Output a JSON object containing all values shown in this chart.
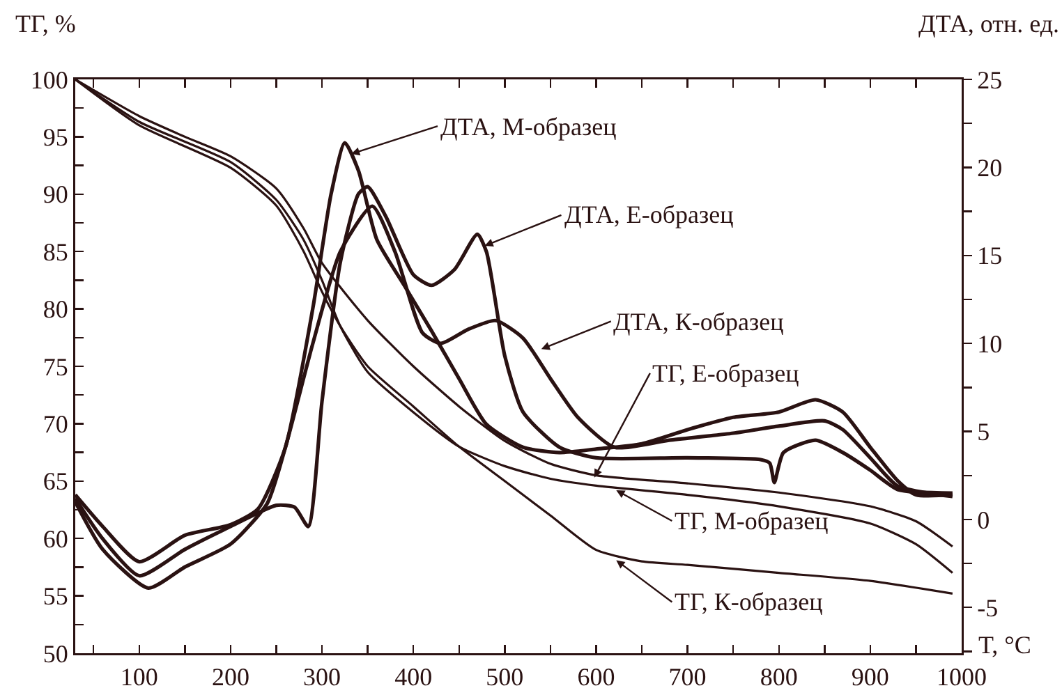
{
  "chart_data": {
    "type": "line",
    "xlabel": "T, °C",
    "ylabel": "ТГ, %",
    "y2label": "ДТА, отн. ед.",
    "xlim": [
      30,
      1000
    ],
    "ylim": [
      50,
      100
    ],
    "y2lim": [
      -7.6,
      25
    ],
    "xticks": [
      {
        "value": 50,
        "label": null
      },
      100,
      {
        "value": 150,
        "label": null
      },
      200,
      {
        "value": 250,
        "label": null
      },
      300,
      {
        "value": 350,
        "label": null
      },
      400,
      {
        "value": 450,
        "label": null
      },
      500,
      {
        "value": 550,
        "label": null
      },
      600,
      {
        "value": 650,
        "label": null
      },
      700,
      {
        "value": 750,
        "label": null
      },
      800,
      {
        "value": 850,
        "label": null
      },
      900,
      {
        "value": 950,
        "label": null
      },
      1000
    ],
    "yticks": [
      50,
      {
        "value": 52.5,
        "label": null
      },
      55,
      {
        "value": 57.5,
        "label": null
      },
      60,
      {
        "value": 62.5,
        "label": null
      },
      65,
      {
        "value": 67.5,
        "label": null
      },
      70,
      {
        "value": 72.5,
        "label": null
      },
      75,
      {
        "value": 77.5,
        "label": null
      },
      80,
      {
        "value": 82.5,
        "label": null
      },
      85,
      {
        "value": 87.5,
        "label": null
      },
      90,
      {
        "value": 92.5,
        "label": null
      },
      95,
      {
        "value": 97.5,
        "label": null
      },
      100
    ],
    "y2ticks": [
      {
        "value": -7.5,
        "label": null
      },
      -5,
      {
        "value": -2.5,
        "label": null
      },
      0,
      {
        "value": 2.5,
        "label": null
      },
      5,
      {
        "value": 7.5,
        "label": null
      },
      10,
      {
        "value": 12.5,
        "label": null
      },
      15,
      {
        "value": 17.5,
        "label": null
      },
      20,
      {
        "value": 22.5,
        "label": null
      },
      25
    ],
    "grid": false,
    "marker": "none",
    "line_style": "solid",
    "series": [
      {
        "color": "#2a1212",
        "x": [
          30,
          100,
          150,
          200,
          250,
          280,
          300,
          350,
          400,
          450,
          500,
          550,
          600,
          700,
          800,
          900,
          950,
          990
        ],
        "values": [
          100,
          96.8,
          95,
          93.3,
          90.5,
          87,
          84,
          79,
          75,
          71.5,
          68.5,
          66.5,
          65.5,
          64.8,
          64,
          62.8,
          61.5,
          59.3
        ]
      },
      {
        "color": "#2a1212",
        "x": [
          30,
          100,
          200,
          250,
          280,
          300,
          320,
          350,
          400,
          450,
          500,
          550,
          600,
          700,
          800,
          900,
          950,
          990
        ],
        "values": [
          100,
          96.3,
          92.8,
          89.5,
          86,
          82.5,
          78.5,
          74.5,
          71,
          68,
          66.3,
          65.2,
          64.6,
          63.8,
          62.8,
          61.3,
          59.5,
          57
        ]
      },
      {
        "color": "#2a1212",
        "x": [
          30,
          100,
          200,
          250,
          280,
          300,
          320,
          350,
          400,
          450,
          500,
          550,
          600,
          650,
          700,
          800,
          900,
          990
        ],
        "values": [
          100,
          96,
          92.3,
          89,
          85,
          81.5,
          78.5,
          75,
          71.5,
          68,
          65,
          62,
          59,
          58,
          57.7,
          57,
          56.3,
          55.2
        ]
      },
      {
        "color": "#2a1212",
        "axis": "y2",
        "x": [
          30,
          60,
          100,
          150,
          200,
          230,
          260,
          290,
          310,
          325,
          340,
          360,
          390,
          420,
          450,
          480,
          520,
          560,
          600,
          650,
          700,
          750,
          800,
          840,
          870,
          900,
          930,
          950,
          990
        ],
        "values": [
          1.4,
          -0.4,
          -2.4,
          -0.9,
          -0.3,
          0.6,
          4.1,
          12,
          18.5,
          21.4,
          19.8,
          15.9,
          13.3,
          10.7,
          8,
          5.4,
          4.1,
          3.8,
          4,
          4.3,
          5.1,
          5.8,
          6.1,
          6.8,
          6.1,
          4.1,
          2.2,
          1.4,
          1.4
        ]
      },
      {
        "color": "#2a1212",
        "axis": "y2",
        "x": [
          30,
          60,
          100,
          150,
          200,
          250,
          270,
          285,
          300,
          320,
          340,
          350,
          370,
          400,
          420,
          445,
          470,
          480,
          500,
          520,
          560,
          600,
          700,
          780,
          790,
          795,
          805,
          840,
          870,
          900,
          930,
          990
        ],
        "values": [
          1.2,
          -1.1,
          -3.2,
          -1.7,
          -0.4,
          0.8,
          0.7,
          -0.4,
          6.7,
          14.6,
          18.5,
          18.9,
          17.2,
          13.9,
          13.3,
          14.2,
          16.2,
          15.2,
          9.3,
          6.1,
          4.1,
          3.5,
          3.5,
          3.4,
          3.2,
          2.1,
          3.8,
          4.5,
          3.8,
          2.8,
          1.7,
          1.5
        ]
      },
      {
        "color": "#2a1212",
        "axis": "y2",
        "x": [
          30,
          60,
          110,
          150,
          200,
          240,
          260,
          290,
          320,
          355,
          380,
          410,
          430,
          460,
          490,
          520,
          550,
          580,
          620,
          680,
          750,
          800,
          850,
          870,
          900,
          930,
          990
        ],
        "values": [
          1,
          -1.7,
          -3.9,
          -2.7,
          -1.4,
          0.9,
          4.1,
          10,
          15.2,
          17.8,
          15.2,
          10.6,
          10,
          10.8,
          11.3,
          10.3,
          8,
          5.8,
          4.1,
          4.5,
          4.9,
          5.3,
          5.6,
          5.1,
          3.5,
          1.9,
          1.3
        ]
      }
    ],
    "annotations": [
      {
        "text": "ДТА, М-образец",
        "x": 332,
        "y": 93.5
      },
      {
        "text": "ДТА, Е-образец",
        "x": 478,
        "y": 85.5
      },
      {
        "text": "ДТА, К-образец",
        "x": 540,
        "y": 76.5
      },
      {
        "text": "ТГ, Е-образец",
        "x": 598,
        "y": 65.3
      },
      {
        "text": "ТГ, М-образец",
        "x": 622,
        "y": 64.2
      },
      {
        "text": "ТГ, К-образец",
        "x": 622,
        "y": 58.1
      }
    ]
  }
}
